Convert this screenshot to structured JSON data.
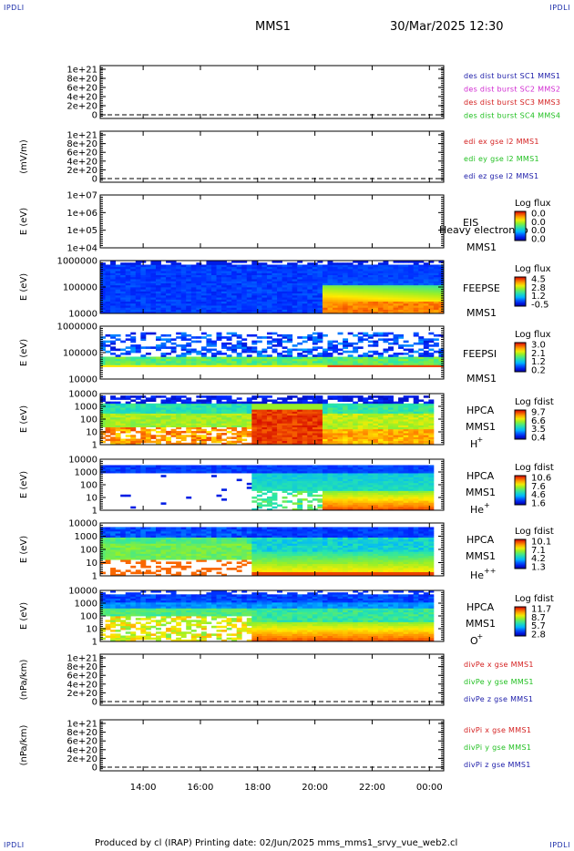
{
  "page": {
    "corner_label": "IPDLI",
    "title": "MMS1",
    "datetime": "30/Mar/2025 12:30",
    "footer": "Produced by cl (IRAP)   Printing date: 02/Jun/2025   mms_mms1_srvy_vue_web2.cl"
  },
  "chart_data": {
    "type": "multi-panel spectrogram",
    "x_ticks": [
      "14:00",
      "16:00",
      "18:00",
      "20:00",
      "22:00",
      "00:00"
    ],
    "panels": [
      {
        "id": "dist",
        "kind": "lines",
        "ylabel": "",
        "yticks": [
          "1e+21",
          "8e+20",
          "6e+20",
          "4e+20",
          "2e+20",
          "0"
        ],
        "legend": [
          {
            "text": "des dist burst SC1 MMS1",
            "color": "#1a1aa8"
          },
          {
            "text": "des dist burst SC2 MMS2",
            "color": "#d12ad1"
          },
          {
            "text": "des dist burst SC3 MMS3",
            "color": "#d42020"
          },
          {
            "text": "des dist burst SC4 MMS4",
            "color": "#22c022"
          }
        ]
      },
      {
        "id": "edi",
        "kind": "lines",
        "ylabel": "(mV/m)",
        "yticks": [
          "1e+21",
          "8e+20",
          "6e+20",
          "4e+20",
          "2e+20",
          "0"
        ],
        "legend": [
          {
            "text": "edi ex gse l2 MMS1",
            "color": "#d42020"
          },
          {
            "text": "edi ey gse l2 MMS1",
            "color": "#22c022"
          },
          {
            "text": "edi ez gse l2 MMS1",
            "color": "#1a1aa8"
          }
        ]
      },
      {
        "id": "eis",
        "kind": "spec",
        "ylabel": "E (eV)",
        "yticks": [
          "1e+07",
          "1e+06",
          "1e+05",
          "1e+04"
        ],
        "labels": [
          "EIS",
          "MMS1"
        ],
        "overlay": "Heavy electron to",
        "cbar_title": "Log flux",
        "cbar_ticks": [
          "0.0",
          "0.0",
          "0.0",
          "0.0"
        ]
      },
      {
        "id": "feepse",
        "kind": "spec",
        "ylabel": "E (eV)",
        "yticks": [
          "1000000",
          "100000",
          "10000"
        ],
        "labels": [
          "FEEPSE",
          "MMS1"
        ],
        "cbar_title": "Log flux",
        "cbar_ticks": [
          "4.5",
          "2.8",
          "1.2",
          "-0.5"
        ]
      },
      {
        "id": "feepsi",
        "kind": "spec",
        "ylabel": "E (eV)",
        "yticks": [
          "1000000",
          "100000",
          "10000"
        ],
        "labels": [
          "FEEPSI",
          "MMS1"
        ],
        "cbar_title": "Log flux",
        "cbar_ticks": [
          "3.0",
          "2.1",
          "1.2",
          "0.2"
        ]
      },
      {
        "id": "hpca_h",
        "kind": "spec",
        "ylabel": "E (eV)",
        "yticks": [
          "10000",
          "1000",
          "100",
          "10",
          "1"
        ],
        "labels": [
          "HPCA",
          "MMS1"
        ],
        "species": "H",
        "species_sup": "+",
        "cbar_title": "Log fdist",
        "cbar_ticks": [
          "9.7",
          "6.6",
          "3.5",
          "0.4"
        ]
      },
      {
        "id": "hpca_he1",
        "kind": "spec",
        "ylabel": "E (eV)",
        "yticks": [
          "10000",
          "1000",
          "100",
          "10",
          "1"
        ],
        "labels": [
          "HPCA",
          "MMS1"
        ],
        "species": "He",
        "species_sup": "+",
        "cbar_title": "Log fdist",
        "cbar_ticks": [
          "10.6",
          "7.6",
          "4.6",
          "1.6"
        ]
      },
      {
        "id": "hpca_he2",
        "kind": "spec",
        "ylabel": "E (eV)",
        "yticks": [
          "10000",
          "1000",
          "100",
          "10",
          "1"
        ],
        "labels": [
          "HPCA",
          "MMS1"
        ],
        "species": "He",
        "species_sup": "++",
        "cbar_title": "Log fdist",
        "cbar_ticks": [
          "10.1",
          "7.1",
          "4.2",
          "1.3"
        ]
      },
      {
        "id": "hpca_o",
        "kind": "spec",
        "ylabel": "E (eV)",
        "yticks": [
          "10000",
          "1000",
          "100",
          "10",
          "1"
        ],
        "labels": [
          "HPCA",
          "MMS1"
        ],
        "species": "O",
        "species_sup": "+",
        "cbar_title": "Log fdist",
        "cbar_ticks": [
          "11.7",
          "8.7",
          "5.7",
          "2.8"
        ]
      },
      {
        "id": "divpe",
        "kind": "lines",
        "ylabel": "(nPa/km)",
        "yticks": [
          "1e+21",
          "8e+20",
          "6e+20",
          "4e+20",
          "2e+20",
          "0"
        ],
        "legend": [
          {
            "text": "divPe x gse MMS1",
            "color": "#d42020"
          },
          {
            "text": "divPe y gse MMS1",
            "color": "#22c022"
          },
          {
            "text": "divPe z gse MMS1",
            "color": "#1a1aa8"
          }
        ]
      },
      {
        "id": "divpi",
        "kind": "lines",
        "ylabel": "(nPa/km)",
        "yticks": [
          "1e+21",
          "8e+20",
          "6e+20",
          "4e+20",
          "2e+20",
          "0"
        ],
        "legend": [
          {
            "text": "divPi x gse MMS1",
            "color": "#d42020"
          },
          {
            "text": "divPi y gse MMS1",
            "color": "#22c022"
          },
          {
            "text": "divPi z gse MMS1",
            "color": "#1a1aa8"
          }
        ]
      }
    ]
  }
}
